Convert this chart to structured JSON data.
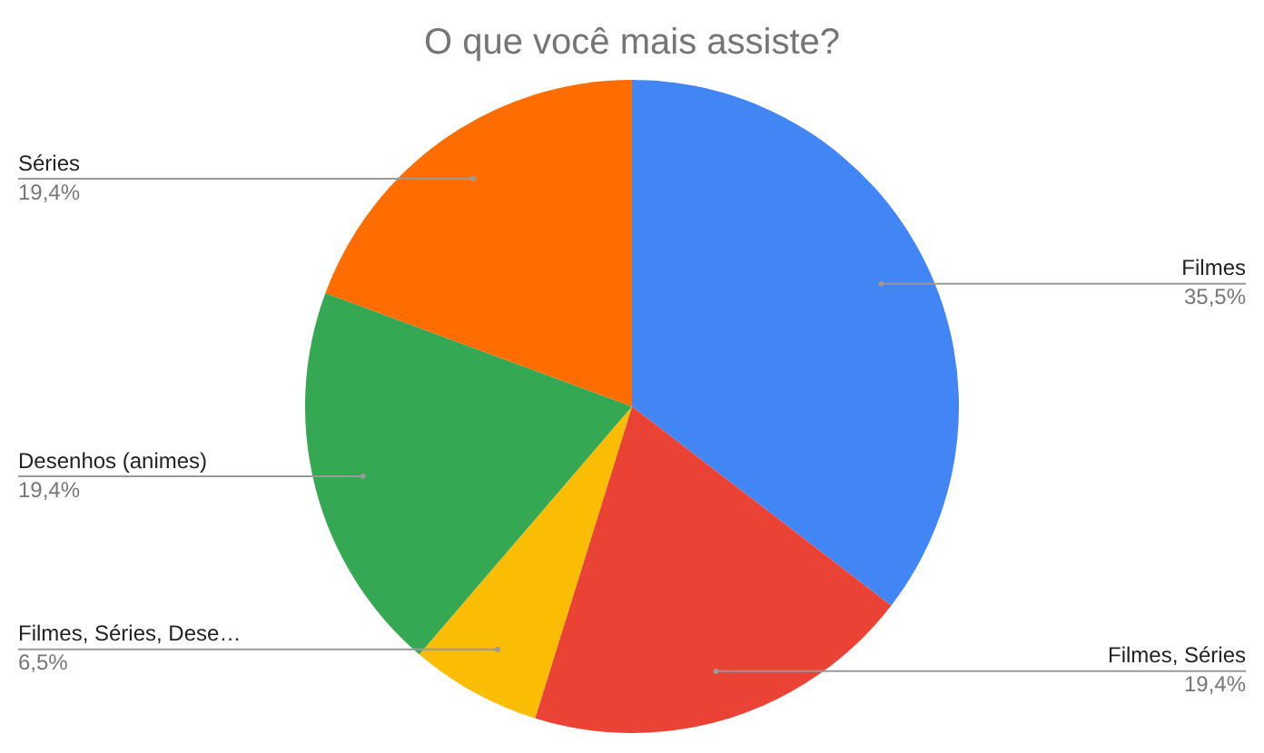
{
  "chart_data": {
    "type": "pie",
    "title": "O que você mais assiste?",
    "categories": [
      "Filmes",
      "Filmes, Séries",
      "Filmes, Séries, Dese…",
      "Desenhos (animes)",
      "Séries"
    ],
    "values": [
      35.5,
      19.4,
      6.5,
      19.4,
      19.4
    ],
    "value_labels": [
      "35,5%",
      "19,4%",
      "6,5%",
      "19,4%",
      "19,4%"
    ],
    "colors": [
      "#4285f4",
      "#ea4335",
      "#fbbc04",
      "#34a853",
      "#ff6d01"
    ],
    "legend": false
  }
}
